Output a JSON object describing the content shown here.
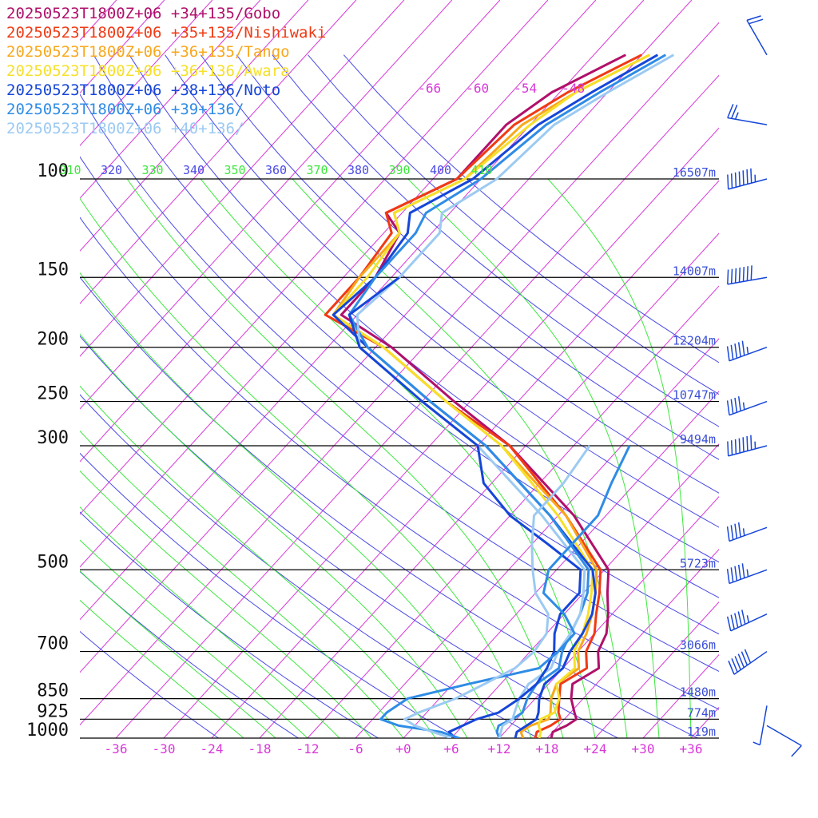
{
  "legend": [
    {
      "label": "20250523T1800Z+06 +34+135/Gobo",
      "color": "#b0106a"
    },
    {
      "label": "20250523T1800Z+06 +35+135/Nishiwaki",
      "color": "#f03a14"
    },
    {
      "label": "20250523T1800Z+06 +36+135/Tango",
      "color": "#f8a81c"
    },
    {
      "label": "20250523T1800Z+06 +36+136/Awara",
      "color": "#f6e02a"
    },
    {
      "label": "20250523T1800Z+06 +38+136/Noto",
      "color": "#1646d8"
    },
    {
      "label": "20250523T1800Z+06 +39+136/",
      "color": "#2f8ce6"
    },
    {
      "label": "20250523T1800Z+06 +40+136/",
      "color": "#9ccaf2"
    }
  ],
  "chart_data": {
    "type": "line",
    "title": "",
    "xlabel": "",
    "ylabel": "",
    "x_ticks": [
      "-36",
      "-30",
      "-24",
      "-18",
      "-12",
      "-6",
      "+0",
      "+6",
      "+12",
      "+18",
      "+24",
      "+30",
      "+36"
    ],
    "x_tick_values": [
      -36,
      -30,
      -24,
      -18,
      -12,
      -6,
      0,
      6,
      12,
      18,
      24,
      30,
      36
    ],
    "xlim": [
      -40,
      40
    ],
    "pressure_levels": [
      {
        "p": 100,
        "label": "100",
        "height": "16507m"
      },
      {
        "p": 150,
        "label": "150",
        "height": "14007m"
      },
      {
        "p": 200,
        "label": "200",
        "height": "12204m"
      },
      {
        "p": 250,
        "label": "250",
        "height": "10747m"
      },
      {
        "p": 300,
        "label": "300",
        "height": "9494m"
      },
      {
        "p": 500,
        "label": "500",
        "height": "5723m"
      },
      {
        "p": 700,
        "label": "700",
        "height": "3066m"
      },
      {
        "p": 850,
        "label": "850",
        "height": "1480m"
      },
      {
        "p": 925,
        "label": "925",
        "height": "774m"
      },
      {
        "p": 1000,
        "label": "1000",
        "height": "119m"
      }
    ],
    "ylim_hpa": [
      1000,
      60
    ],
    "upper_temp_labels": [
      "-66",
      "-60",
      "-54",
      "-48"
    ],
    "upper_temp_values": [
      -66,
      -60,
      -54,
      -48
    ],
    "theta_labels": [
      "310",
      "320",
      "330",
      "340",
      "350",
      "360",
      "370",
      "380",
      "390",
      "400",
      "410"
    ],
    "isotherm_color": "#d838d8",
    "dry_adiabat_color": "#4a4ae6",
    "moist_adiabat_color": "#3ee83e",
    "wind_barb_color": "#1646d8",
    "series": [
      {
        "name": "20250523T1800Z+06 +34+135/Gobo",
        "color": "#b0106a",
        "points": [
          [
            1000,
            18.5
          ],
          [
            975,
            18
          ],
          [
            950,
            19
          ],
          [
            925,
            19.5
          ],
          [
            900,
            18.5
          ],
          [
            850,
            16.5
          ],
          [
            800,
            15
          ],
          [
            750,
            16.5
          ],
          [
            700,
            14.5
          ],
          [
            650,
            13.5
          ],
          [
            600,
            11.5
          ],
          [
            550,
            9
          ],
          [
            500,
            6.5
          ],
          [
            400,
            -4
          ],
          [
            300,
            -20
          ],
          [
            250,
            -32
          ],
          [
            200,
            -46
          ],
          [
            175,
            -56
          ],
          [
            150,
            -56
          ],
          [
            125,
            -58
          ],
          [
            115,
            -62
          ],
          [
            100,
            -57
          ],
          [
            80,
            -57
          ],
          [
            70,
            -55
          ],
          [
            60,
            -50
          ]
        ]
      },
      {
        "name": "20250523T1800Z+06 +35+135/Nishiwaki",
        "color": "#f03a14",
        "points": [
          [
            1000,
            16.5
          ],
          [
            975,
            16
          ],
          [
            950,
            17
          ],
          [
            925,
            17.5
          ],
          [
            900,
            16.5
          ],
          [
            850,
            15
          ],
          [
            800,
            13.5
          ],
          [
            750,
            15
          ],
          [
            700,
            13
          ],
          [
            650,
            12
          ],
          [
            600,
            10
          ],
          [
            550,
            8
          ],
          [
            500,
            5.5
          ],
          [
            400,
            -5
          ],
          [
            300,
            -20
          ],
          [
            250,
            -33
          ],
          [
            200,
            -47
          ],
          [
            175,
            -58
          ],
          [
            150,
            -58
          ],
          [
            125,
            -59
          ],
          [
            115,
            -62
          ],
          [
            100,
            -57
          ],
          [
            80,
            -56
          ],
          [
            70,
            -53
          ],
          [
            60,
            -48
          ]
        ]
      },
      {
        "name": "20250523T1800Z+06 +36+135/Tango",
        "color": "#f8a81c",
        "points": [
          [
            1000,
            15
          ],
          [
            975,
            14
          ],
          [
            950,
            14.5
          ],
          [
            925,
            16
          ],
          [
            900,
            15.5
          ],
          [
            850,
            14
          ],
          [
            800,
            13
          ],
          [
            750,
            14
          ],
          [
            700,
            12
          ],
          [
            650,
            11
          ],
          [
            600,
            9.5
          ],
          [
            550,
            7.5
          ],
          [
            500,
            5
          ],
          [
            400,
            -5
          ],
          [
            300,
            -21
          ],
          [
            250,
            -33
          ],
          [
            200,
            -47
          ],
          [
            175,
            -57
          ],
          [
            150,
            -58
          ],
          [
            125,
            -58
          ],
          [
            115,
            -61
          ],
          [
            100,
            -56
          ],
          [
            80,
            -55
          ],
          [
            70,
            -52
          ],
          [
            60,
            -47
          ]
        ]
      },
      {
        "name": "20250523T1800Z+06 +36+136/Awara",
        "color": "#f6e02a",
        "points": [
          [
            1000,
            17
          ],
          [
            975,
            16.5
          ],
          [
            950,
            15.5
          ],
          [
            925,
            15
          ],
          [
            900,
            16
          ],
          [
            850,
            15
          ],
          [
            800,
            13
          ],
          [
            750,
            13.5
          ],
          [
            700,
            11.5
          ],
          [
            650,
            10.5
          ],
          [
            600,
            9
          ],
          [
            550,
            7
          ],
          [
            500,
            4.5
          ],
          [
            400,
            -6
          ],
          [
            300,
            -21
          ],
          [
            250,
            -33
          ],
          [
            200,
            -47
          ],
          [
            175,
            -57
          ],
          [
            150,
            -57
          ],
          [
            125,
            -58
          ],
          [
            115,
            -61
          ],
          [
            100,
            -56
          ],
          [
            80,
            -54
          ],
          [
            70,
            -52
          ],
          [
            60,
            -47
          ]
        ]
      },
      {
        "name": "20250523T1800Z+06 +38+136/Noto",
        "color": "#1646d8",
        "points": [
          [
            1000,
            14
          ],
          [
            975,
            13.5
          ],
          [
            950,
            14
          ],
          [
            925,
            14.5
          ],
          [
            900,
            14
          ],
          [
            850,
            12.5
          ],
          [
            800,
            11.5
          ],
          [
            750,
            12
          ],
          [
            700,
            11
          ],
          [
            650,
            10.5
          ],
          [
            600,
            9.5
          ],
          [
            550,
            7.5
          ],
          [
            500,
            4.5
          ],
          [
            400,
            -7
          ],
          [
            300,
            -23
          ],
          [
            250,
            -35
          ],
          [
            200,
            -49
          ],
          [
            175,
            -57
          ],
          [
            150,
            -56
          ],
          [
            125,
            -57
          ],
          [
            115,
            -59
          ],
          [
            100,
            -55
          ],
          [
            80,
            -53
          ],
          [
            70,
            -50
          ],
          [
            60,
            -46
          ]
        ]
      },
      {
        "name": "20250523T1800Z+06 +39+136/",
        "color": "#2f8ce6",
        "points": [
          [
            1000,
            12
          ],
          [
            975,
            11
          ],
          [
            950,
            10.5
          ],
          [
            925,
            11.5
          ],
          [
            900,
            12
          ],
          [
            850,
            11
          ],
          [
            800,
            10.5
          ],
          [
            750,
            11.5
          ],
          [
            700,
            10
          ],
          [
            650,
            9
          ],
          [
            600,
            8
          ],
          [
            550,
            6.5
          ],
          [
            500,
            4
          ],
          [
            400,
            -7
          ],
          [
            300,
            -23
          ],
          [
            250,
            -35
          ],
          [
            200,
            -49
          ],
          [
            175,
            -55
          ],
          [
            150,
            -56
          ],
          [
            125,
            -56
          ],
          [
            115,
            -57
          ],
          [
            100,
            -54
          ],
          [
            80,
            -52
          ],
          [
            70,
            -49
          ],
          [
            60,
            -45
          ]
        ]
      },
      {
        "name": "20250523T1800Z+06 +40+136/",
        "color": "#9ccaf2",
        "points": [
          [
            1000,
            12
          ],
          [
            975,
            11.5
          ],
          [
            950,
            11
          ],
          [
            925,
            11.5
          ],
          [
            900,
            11
          ],
          [
            850,
            10
          ],
          [
            800,
            9.5
          ],
          [
            750,
            10.5
          ],
          [
            700,
            9.5
          ],
          [
            650,
            9
          ],
          [
            600,
            8
          ],
          [
            550,
            6
          ],
          [
            500,
            3.5
          ],
          [
            400,
            -8
          ],
          [
            300,
            -24
          ],
          [
            250,
            -36
          ],
          [
            200,
            -50
          ],
          [
            175,
            -54
          ],
          [
            150,
            -53
          ],
          [
            125,
            -53
          ],
          [
            115,
            -55
          ],
          [
            100,
            -52
          ],
          [
            80,
            -51
          ],
          [
            70,
            -48
          ],
          [
            60,
            -44
          ]
        ]
      },
      {
        "name": "",
        "color": "#1646d8",
        "points": [
          [
            1000,
            6.5
          ],
          [
            975,
            5
          ],
          [
            950,
            6
          ],
          [
            925,
            7
          ],
          [
            900,
            9
          ],
          [
            850,
            10
          ],
          [
            800,
            10.5
          ],
          [
            750,
            10
          ],
          [
            700,
            9
          ],
          [
            650,
            7
          ],
          [
            600,
            5.5
          ],
          [
            550,
            5.5
          ],
          [
            500,
            3
          ],
          [
            450,
            -4
          ],
          [
            400,
            -12
          ],
          [
            350,
            -19
          ],
          [
            300,
            -24
          ],
          [
            250,
            -36
          ],
          [
            200,
            -50
          ],
          [
            175,
            -55
          ],
          [
            150,
            -53
          ]
        ]
      },
      {
        "name": "",
        "color": "#2f8ce6",
        "points": [
          [
            1000,
            7
          ],
          [
            975,
            4
          ],
          [
            950,
            -2
          ],
          [
            925,
            -5
          ],
          [
            900,
            -5
          ],
          [
            850,
            -4
          ],
          [
            800,
            2
          ],
          [
            750,
            9
          ],
          [
            700,
            9.5
          ],
          [
            650,
            9.5
          ],
          [
            600,
            6
          ],
          [
            550,
            1
          ],
          [
            500,
            -1
          ],
          [
            450,
            -1
          ],
          [
            400,
            -1
          ],
          [
            350,
            -3
          ],
          [
            300,
            -5
          ]
        ]
      },
      {
        "name": "",
        "color": "#9ccaf2",
        "points": [
          [
            1000,
            6
          ],
          [
            975,
            3
          ],
          [
            950,
            0
          ],
          [
            925,
            -2
          ],
          [
            900,
            -1
          ],
          [
            850,
            2
          ],
          [
            800,
            4
          ],
          [
            750,
            6
          ],
          [
            700,
            6.5
          ],
          [
            650,
            6
          ],
          [
            600,
            4
          ],
          [
            550,
            0
          ],
          [
            500,
            -3
          ],
          [
            450,
            -6
          ],
          [
            400,
            -9
          ],
          [
            350,
            -9
          ],
          [
            300,
            -10
          ]
        ]
      }
    ],
    "wind_barbs": [
      {
        "p": 60,
        "dir": 330,
        "speed": 20
      },
      {
        "p": 80,
        "dir": 280,
        "speed": 25
      },
      {
        "p": 100,
        "dir": 255,
        "speed": 75
      },
      {
        "p": 150,
        "dir": 260,
        "speed": 70
      },
      {
        "p": 200,
        "dir": 250,
        "speed": 55
      },
      {
        "p": 250,
        "dir": 250,
        "speed": 45
      },
      {
        "p": 300,
        "dir": 255,
        "speed": 75
      },
      {
        "p": 420,
        "dir": 250,
        "speed": 45
      },
      {
        "p": 500,
        "dir": 250,
        "speed": 55
      },
      {
        "p": 600,
        "dir": 245,
        "speed": 55
      },
      {
        "p": 700,
        "dir": 235,
        "speed": 60
      },
      {
        "p": 875,
        "dir": 190,
        "speed": 5
      },
      {
        "p": 950,
        "dir": 120,
        "speed": 10
      }
    ]
  }
}
